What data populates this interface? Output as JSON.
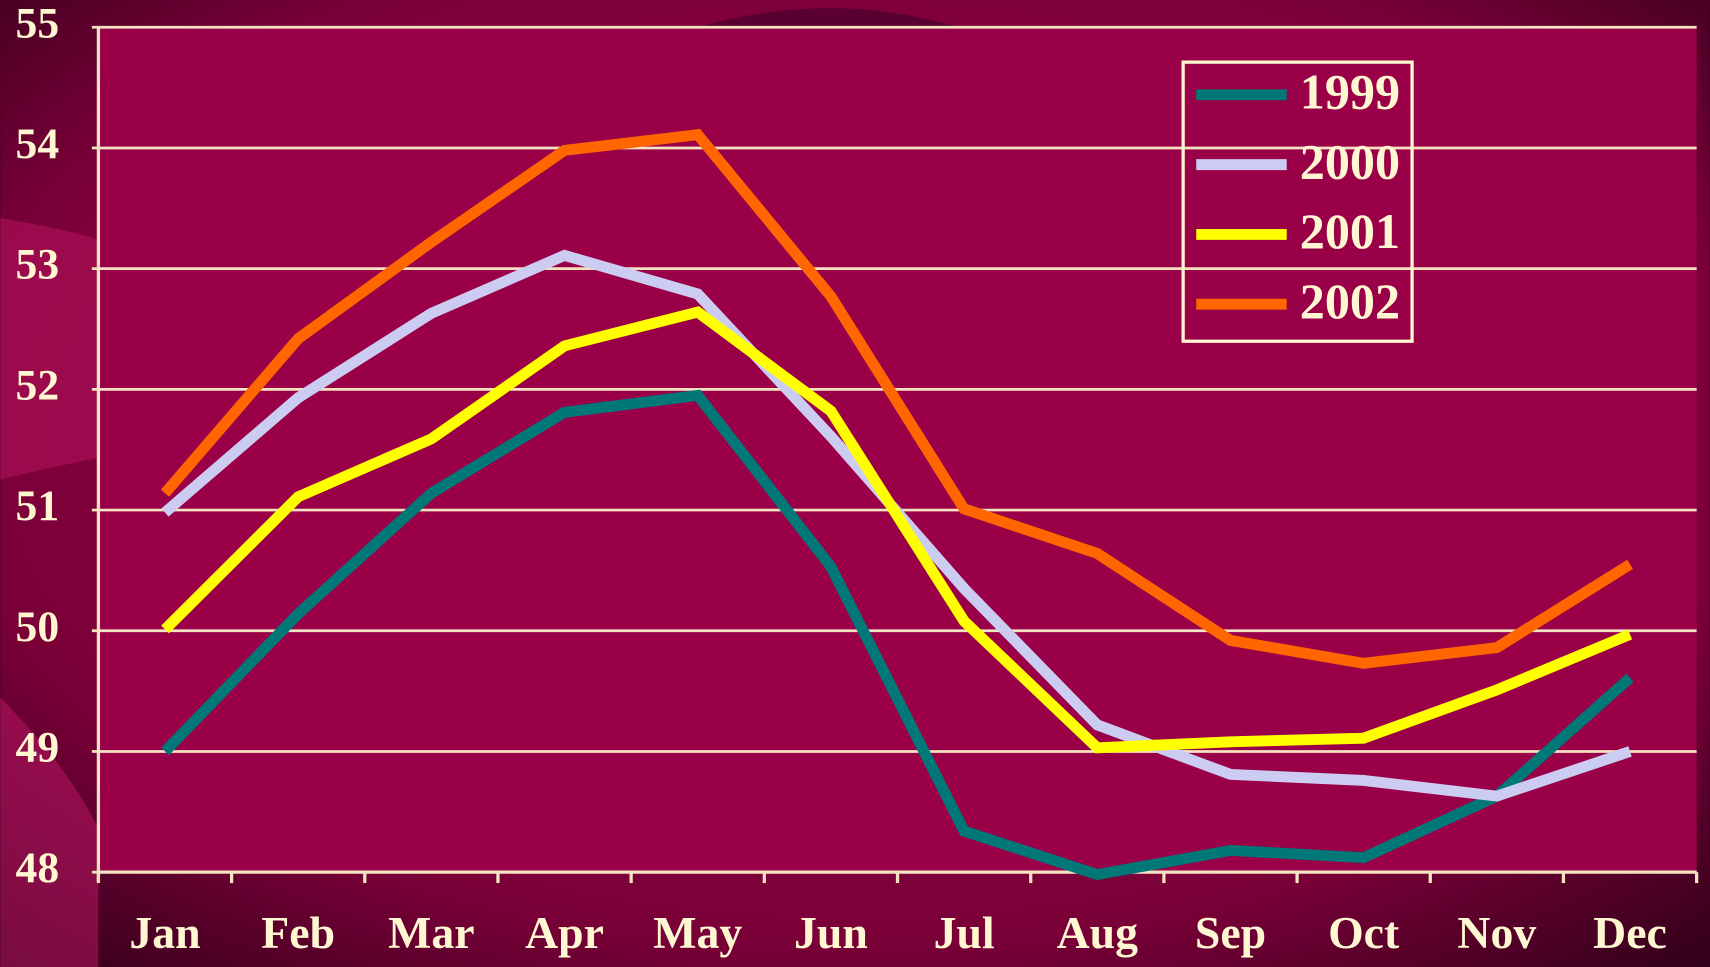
{
  "chart_data": {
    "type": "line",
    "categories": [
      "Jan",
      "Feb",
      "Mar",
      "Apr",
      "May",
      "Jun",
      "Jul",
      "Aug",
      "Sep",
      "Oct",
      "Nov",
      "Dec"
    ],
    "series": [
      {
        "name": "1999",
        "color": "#007878",
        "values": [
          49.0,
          50.14,
          51.14,
          51.81,
          51.95,
          50.53,
          48.34,
          47.98,
          48.18,
          48.12,
          48.63,
          49.61
        ]
      },
      {
        "name": "2000",
        "color": "#ccccf2",
        "values": [
          50.98,
          51.93,
          52.63,
          53.11,
          52.79,
          51.61,
          50.35,
          49.22,
          48.81,
          48.76,
          48.63,
          49.0
        ]
      },
      {
        "name": "2001",
        "color": "#ffff00",
        "values": [
          50.01,
          51.11,
          51.59,
          52.36,
          52.64,
          51.82,
          50.08,
          49.03,
          49.08,
          49.11,
          49.51,
          49.97
        ]
      },
      {
        "name": "2002",
        "color": "#ff6600",
        "values": [
          51.14,
          52.42,
          53.22,
          53.98,
          54.11,
          52.77,
          51.01,
          50.64,
          49.92,
          49.73,
          49.86,
          50.55
        ]
      }
    ],
    "ylim": [
      48,
      55
    ],
    "yticks": [
      48,
      49,
      50,
      51,
      52,
      53,
      54,
      55
    ],
    "grid": true,
    "legend": "upper right"
  }
}
